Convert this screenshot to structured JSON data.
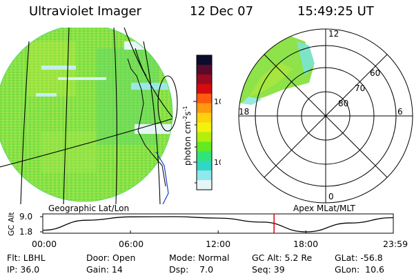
{
  "header": {
    "title": "Ultraviolet Imager",
    "date": "12 Dec 07",
    "time": "15:49:25 UT"
  },
  "colorbar": {
    "label": "photon cm",
    "label_sup1": "-2",
    "label_mid": "s",
    "label_sup2": "-1",
    "ticks": [
      "100",
      "10"
    ],
    "colors": [
      "#0c0c2e",
      "#5a0a2a",
      "#9a0a20",
      "#d40c10",
      "#ff5a10",
      "#ff9a10",
      "#ffd20c",
      "#f2f20c",
      "#b4ee0c",
      "#64ea22",
      "#30e47c",
      "#30d6c6",
      "#8ee8ec",
      "#e6f6f6"
    ]
  },
  "polar_plot": {
    "labels": {
      "top": "12",
      "left": "18",
      "right": "6",
      "bottom": "0",
      "lat60": "60",
      "lat70": "70",
      "lat80": "80"
    }
  },
  "timeline": {
    "left_label": "Geographic Lat/Lon",
    "right_label": "Apex MLat/MLT",
    "ylabel": "GC Alt",
    "ytick_top": "9.0",
    "ytick_bottom": "1.8",
    "xticks": [
      "00:00",
      "06:00",
      "12:00",
      "18:00",
      "23:59"
    ],
    "marker_color": "#e00000"
  },
  "chart_data": {
    "type": "line",
    "title": "",
    "xlabel": "",
    "ylabel": "GC Alt",
    "x": [
      "00:00",
      "03:00",
      "06:00",
      "09:00",
      "12:00",
      "15:00",
      "18:00",
      "21:00",
      "23:59"
    ],
    "series": [
      {
        "values": [
          2.6,
          7.3,
          8.9,
          9.0,
          8.3,
          6.4,
          1.8,
          6.0,
          8.5
        ]
      }
    ],
    "ylim": [
      1.8,
      9.0
    ],
    "marker_time": "15:49:25"
  },
  "info": {
    "row1": {
      "flt": "Flt: LBHL",
      "door": "Door: Open",
      "mode": "Mode: Normal",
      "gcalt": "GC Alt: 5.2 Re",
      "glat": "GLat:  -56.8"
    },
    "row2": {
      "ip": "IP: 36.0",
      "gain": "Gain: 14",
      "dsp": "Dsp:    7.0",
      "seq": "Seq: 39",
      "glon": "GLon:  10.6"
    }
  }
}
